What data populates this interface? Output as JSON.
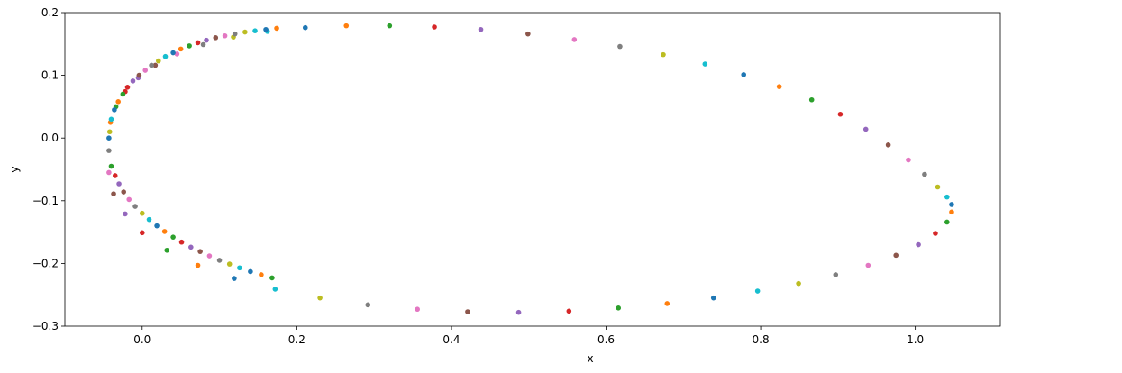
{
  "chart_data": {
    "type": "scatter",
    "title": "",
    "xlabel": "x",
    "ylabel": "y",
    "xlim": [
      -0.1,
      1.11
    ],
    "ylim": [
      -0.3,
      0.2
    ],
    "xticks": [
      0.0,
      0.2,
      0.4,
      0.6,
      0.8,
      1.0
    ],
    "xtick_labels": [
      "0.0",
      "0.2",
      "0.4",
      "0.6",
      "0.8",
      "1.0"
    ],
    "yticks": [
      -0.3,
      -0.2,
      -0.1,
      0.0,
      0.1,
      0.2
    ],
    "ytick_labels": [
      "−0.3",
      "−0.2",
      "−0.1",
      "0.0",
      "0.1",
      "0.2"
    ],
    "grid": false,
    "legend": "none",
    "description_of_points": "Points lie on a closed ellipse-like orbit, densely sampled near the left end and sparser on the right; point colors cycle through the default palette.",
    "x": [
      -0.043,
      -0.041,
      -0.034,
      -0.022,
      -0.005,
      0.017,
      0.045,
      0.079,
      0.118,
      0.162,
      0.211,
      0.264,
      0.32,
      0.378,
      0.438,
      0.499,
      0.559,
      0.618,
      0.674,
      0.728,
      0.778,
      0.824,
      0.866,
      0.903,
      0.936,
      0.965,
      0.991,
      1.012,
      1.029,
      1.041,
      1.047,
      1.047,
      1.041,
      1.026,
      1.004,
      0.975,
      0.939,
      0.897,
      0.849,
      0.796,
      0.739,
      0.679,
      0.616,
      0.552,
      0.487,
      0.421,
      0.356,
      0.292,
      0.23,
      0.172,
      0.119,
      0.072,
      0.032,
      0.0,
      -0.022,
      -0.037,
      -0.043,
      -0.043,
      -0.042,
      -0.04,
      -0.036,
      -0.031,
      -0.025,
      -0.019,
      -0.012,
      -0.004,
      0.004,
      0.012,
      0.021,
      0.03,
      0.04,
      0.05,
      0.061,
      0.072,
      0.083,
      0.095,
      0.107,
      0.12,
      0.133,
      0.146,
      0.16,
      0.174,
      -0.04,
      -0.035,
      -0.03,
      -0.024,
      -0.017,
      -0.009,
      0.0,
      0.009,
      0.019,
      0.029,
      0.04,
      0.051,
      0.063,
      0.075,
      0.087,
      0.1,
      0.113,
      0.126,
      0.14,
      0.154,
      0.168
    ],
    "y": [
      0.0,
      0.025,
      0.05,
      0.074,
      0.096,
      0.116,
      0.134,
      0.149,
      0.161,
      0.17,
      0.176,
      0.179,
      0.179,
      0.177,
      0.173,
      0.166,
      0.157,
      0.146,
      0.133,
      0.118,
      0.101,
      0.082,
      0.061,
      0.038,
      0.014,
      -0.011,
      -0.035,
      -0.058,
      -0.078,
      -0.094,
      -0.106,
      -0.118,
      -0.134,
      -0.152,
      -0.17,
      -0.187,
      -0.203,
      -0.218,
      -0.232,
      -0.244,
      -0.255,
      -0.264,
      -0.271,
      -0.276,
      -0.278,
      -0.277,
      -0.273,
      -0.266,
      -0.255,
      -0.241,
      -0.224,
      -0.203,
      -0.179,
      -0.151,
      -0.121,
      -0.089,
      -0.055,
      -0.02,
      0.01,
      0.03,
      0.045,
      0.058,
      0.07,
      0.081,
      0.091,
      0.1,
      0.108,
      0.116,
      0.123,
      0.13,
      0.136,
      0.142,
      0.147,
      0.152,
      0.156,
      0.16,
      0.163,
      0.166,
      0.169,
      0.171,
      0.173,
      0.175,
      -0.045,
      -0.06,
      -0.073,
      -0.086,
      -0.098,
      -0.109,
      -0.12,
      -0.13,
      -0.14,
      -0.149,
      -0.158,
      -0.166,
      -0.174,
      -0.181,
      -0.188,
      -0.195,
      -0.201,
      -0.207,
      -0.213,
      -0.218,
      -0.223
    ],
    "colors": [
      "#1f77b4",
      "#ff7f0e",
      "#2ca02c",
      "#d62728",
      "#9467bd",
      "#8c564b",
      "#e377c2",
      "#7f7f7f",
      "#bcbd22",
      "#17becf"
    ]
  }
}
